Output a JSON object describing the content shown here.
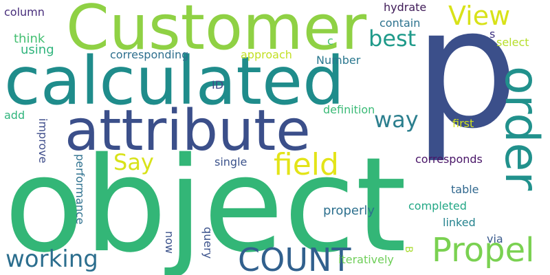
{
  "word_cloud": {
    "background": "#ffffff",
    "palette": [
      "#3b4f8a",
      "#2c738e",
      "#21908d",
      "#27ad81",
      "#5dc962",
      "#aadc32",
      "#e3e418",
      "#440154"
    ],
    "words": [
      {
        "key": "object",
        "text": "object",
        "color": "#33b677",
        "vertical": false
      },
      {
        "key": "p",
        "text": "p",
        "color": "#3b4f8a",
        "vertical": false
      },
      {
        "key": "customer",
        "text": "Customer",
        "color": "#8fd144",
        "vertical": false
      },
      {
        "key": "calculated",
        "text": "calculated",
        "color": "#1f8c8b",
        "vertical": false
      },
      {
        "key": "attribute",
        "text": "attribute",
        "color": "#3b4f8a",
        "vertical": false
      },
      {
        "key": "order",
        "text": "order",
        "color": "#21918c",
        "vertical": true
      },
      {
        "key": "propel",
        "text": "Propel",
        "color": "#7ad151",
        "vertical": false
      },
      {
        "key": "field",
        "text": "field",
        "color": "#e3e418",
        "vertical": false
      },
      {
        "key": "count",
        "text": "COUNT",
        "color": "#31608d",
        "vertical": false
      },
      {
        "key": "working",
        "text": "working",
        "color": "#2c6e8e",
        "vertical": false
      },
      {
        "key": "view",
        "text": "View",
        "color": "#d8e219",
        "vertical": false
      },
      {
        "key": "best",
        "text": "best",
        "color": "#1f9a8a",
        "vertical": false
      },
      {
        "key": "way",
        "text": "way",
        "color": "#2c7f8e",
        "vertical": false
      },
      {
        "key": "say",
        "text": "Say",
        "color": "#d8e219",
        "vertical": false
      },
      {
        "key": "column",
        "text": "column",
        "color": "#472d7b",
        "vertical": false
      },
      {
        "key": "think",
        "text": "think",
        "color": "#43bf71",
        "vertical": false
      },
      {
        "key": "using",
        "text": "using",
        "color": "#2fb47c",
        "vertical": false
      },
      {
        "key": "c",
        "text": "c",
        "color": "#3dbc74",
        "vertical": false
      },
      {
        "key": "hydrate",
        "text": "hydrate",
        "color": "#3e1a57",
        "vertical": false
      },
      {
        "key": "contain",
        "text": "contain",
        "color": "#2c728e",
        "vertical": false
      },
      {
        "key": "s",
        "text": "s",
        "color": "#3b2f80",
        "vertical": false
      },
      {
        "key": "select",
        "text": "select",
        "color": "#b5de2b",
        "vertical": false
      },
      {
        "key": "corresponding",
        "text": "corresponding",
        "color": "#2e6f8e",
        "vertical": false
      },
      {
        "key": "approach",
        "text": "approach",
        "color": "#c2df23",
        "vertical": false
      },
      {
        "key": "number",
        "text": "Number",
        "color": "#2a778e",
        "vertical": false
      },
      {
        "key": "id",
        "text": "ID",
        "color": "#3f4788",
        "vertical": false
      },
      {
        "key": "definition",
        "text": "definition",
        "color": "#3aba76",
        "vertical": false
      },
      {
        "key": "add",
        "text": "add",
        "color": "#2fb47c",
        "vertical": false
      },
      {
        "key": "first",
        "text": "first",
        "color": "#d0e11c",
        "vertical": false
      },
      {
        "key": "improve",
        "text": "improve",
        "color": "#3e4c8a",
        "vertical": true
      },
      {
        "key": "single",
        "text": "single",
        "color": "#3b528b",
        "vertical": false
      },
      {
        "key": "corresponds",
        "text": "corresponds",
        "color": "#481467",
        "vertical": false
      },
      {
        "key": "performance",
        "text": "performance",
        "color": "#2d708e",
        "vertical": true
      },
      {
        "key": "table",
        "text": "table",
        "color": "#31688e",
        "vertical": false
      },
      {
        "key": "properly",
        "text": "properly",
        "color": "#2d708e",
        "vertical": false
      },
      {
        "key": "completed",
        "text": "completed",
        "color": "#22a785",
        "vertical": false
      },
      {
        "key": "linked",
        "text": "linked",
        "color": "#25838e",
        "vertical": false
      },
      {
        "key": "now",
        "text": "now",
        "color": "#3b528b",
        "vertical": true
      },
      {
        "key": "query",
        "text": "query",
        "color": "#3b528b",
        "vertical": true
      },
      {
        "key": "via",
        "text": "via",
        "color": "#38598c",
        "vertical": false
      },
      {
        "key": "b",
        "text": "B",
        "color": "#aadc32",
        "vertical": true
      },
      {
        "key": "iteratively",
        "text": "iteratively",
        "color": "#6ece58",
        "vertical": false
      }
    ]
  }
}
